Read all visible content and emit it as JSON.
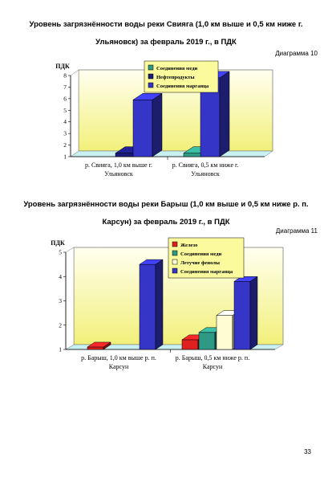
{
  "page_number": "33",
  "colors": {
    "floor": "#c9f0f3",
    "legend_bg": "#fbfb9e",
    "wall_grad_top": "#fffff0",
    "wall_grad_bottom": "#f2f07a"
  },
  "chart_data": [
    {
      "type": "bar",
      "title": "Уровень загрязнённости воды реки Свияга (1,0 км выше и 0,5 км ниже г. Ульяновск) за февраль 2019 г., в ПДК",
      "diagram_label": "Диаграмма 10",
      "ylabel": "ПДК",
      "ylim": [
        1,
        8
      ],
      "yticks": [
        1,
        2,
        3,
        4,
        5,
        6,
        7,
        8
      ],
      "categories": [
        "р. Свияга, 1,0 км выше г. Ульяновск",
        "р. Свияга, 0,5 км ниже г. Ульяновск"
      ],
      "category_lines": [
        [
          "р. Свияга, 1,0 км выше г.",
          "Ульяновск"
        ],
        [
          "р. Свияга, 0,5 км ниже г.",
          "Ульяновск"
        ]
      ],
      "legend_position": "top-center",
      "series": [
        {
          "name": "Соединения меди",
          "color": "#2e9a86",
          "values": [
            null,
            1.3
          ]
        },
        {
          "name": "Нефтепродукты",
          "color": "#1a1a7a",
          "values": [
            1.3,
            null
          ]
        },
        {
          "name": "Соединения марганца",
          "color": "#3535c8",
          "values": [
            5.9,
            7.8
          ]
        }
      ]
    },
    {
      "type": "bar",
      "title": "Уровень загрязнённости воды реки Барыш (1,0 км выше и 0,5 км ниже р. п. Карсун) за февраль 2019 г., в ПДК",
      "diagram_label": "Диаграмма 11",
      "ylabel": "ПДК",
      "ylim": [
        1,
        5
      ],
      "yticks": [
        1,
        2,
        3,
        4,
        5
      ],
      "categories": [
        "р. Барыш, 1,0 км выше р. п. Карсун",
        "р. Барыш, 0,5 км ниже р. п. Карсун"
      ],
      "category_lines": [
        [
          "р. Барыш, 1,0 км выше р. п.",
          "Карсун"
        ],
        [
          "р. Барыш, 0,5 км ниже р. п.",
          "Карсун"
        ]
      ],
      "legend_position": "top-right",
      "series": [
        {
          "name": "Железо",
          "color": "#e02020",
          "values": [
            1.1,
            1.4
          ]
        },
        {
          "name": "Соединения меди",
          "color": "#2e9a86",
          "values": [
            null,
            1.7
          ]
        },
        {
          "name": "Летучие фенолы",
          "color": "#fffbd2",
          "values": [
            null,
            2.4
          ]
        },
        {
          "name": "Соединения марганца",
          "color": "#3535c8",
          "values": [
            4.5,
            3.8
          ]
        }
      ]
    }
  ]
}
